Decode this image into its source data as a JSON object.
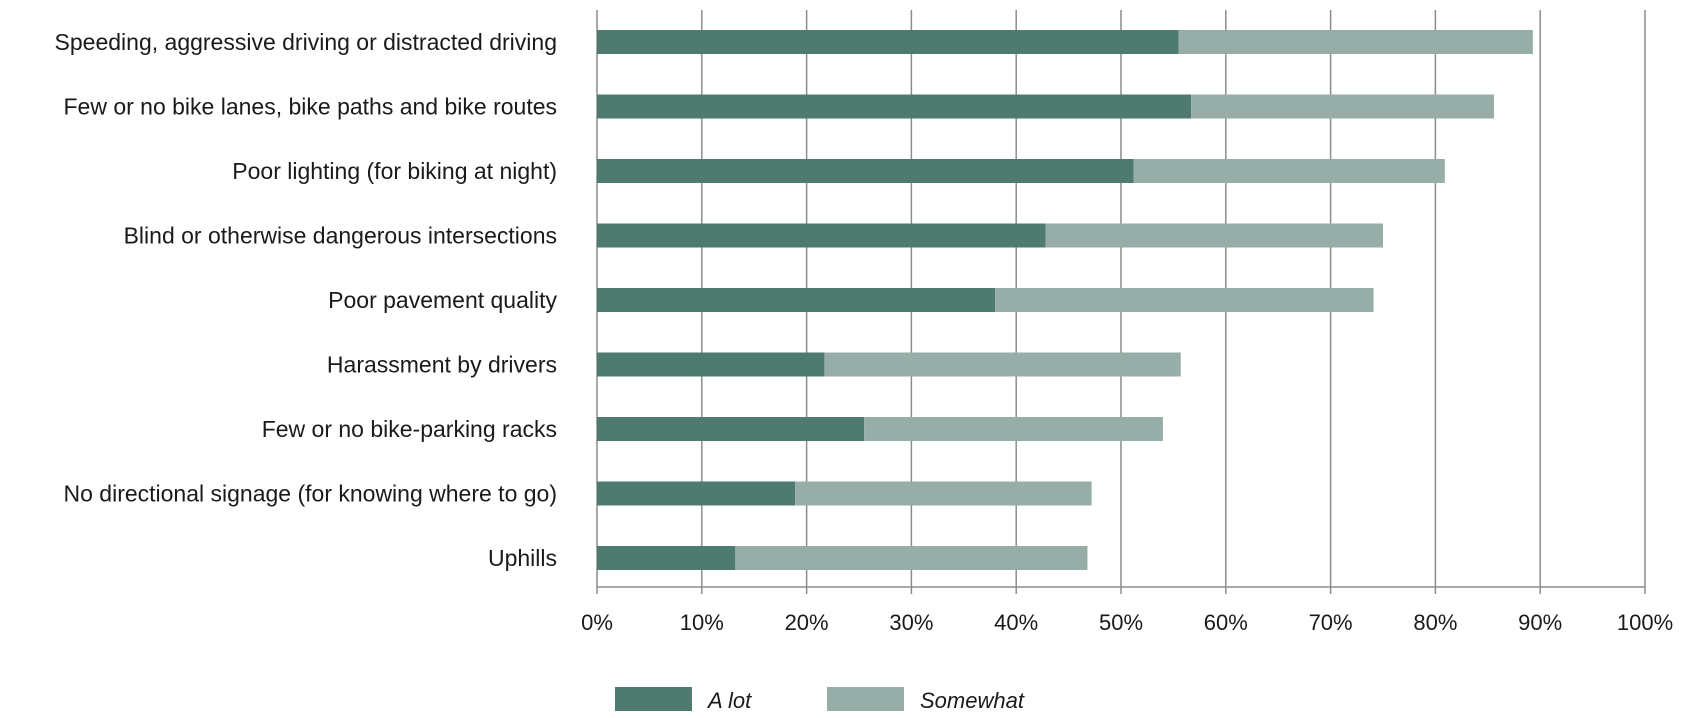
{
  "chart_data": {
    "type": "bar",
    "orientation": "horizontal",
    "stacked": true,
    "title": "",
    "xlabel": "",
    "ylabel": "",
    "xlim": [
      0,
      100
    ],
    "x_ticks": [
      "0%",
      "10%",
      "20%",
      "30%",
      "40%",
      "50%",
      "60%",
      "70%",
      "80%",
      "90%",
      "100%"
    ],
    "grid": "vertical",
    "legend_position": "bottom",
    "categories": [
      "Speeding, aggressive driving or distracted driving",
      "Few or no bike lanes, bike paths and bike routes",
      "Poor lighting (for biking at night)",
      "Blind or otherwise dangerous intersections",
      "Poor pavement quality",
      "Harassment by drivers",
      "Few or no bike-parking racks",
      "No directional signage (for knowing where to go)",
      "Uphills"
    ],
    "series": [
      {
        "name": "A lot",
        "color": "#4f7a70",
        "values": [
          55.5,
          56.7,
          51.2,
          42.8,
          38.0,
          21.7,
          25.5,
          18.9,
          13.2
        ]
      },
      {
        "name": "Somewhat",
        "color": "#97aea8",
        "values": [
          33.8,
          28.9,
          29.7,
          32.2,
          36.1,
          34.0,
          28.5,
          28.3,
          33.6
        ]
      }
    ]
  }
}
